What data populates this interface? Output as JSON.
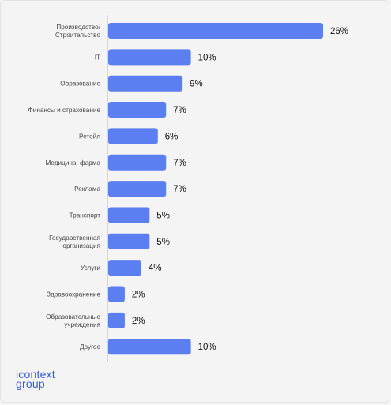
{
  "colors": {
    "bar": "#5b7ff0",
    "axis": "#b9b9b9",
    "label": "#444444",
    "value": "#111111",
    "logo": "#3a5bd9"
  },
  "logo": {
    "line1": "icontext",
    "line2": "group"
  },
  "chart_data": {
    "type": "bar",
    "orientation": "horizontal",
    "categories": [
      [
        "Производство/",
        "Строительство"
      ],
      [
        "IT"
      ],
      [
        "Образование"
      ],
      [
        "Финансы и страхование"
      ],
      [
        "Ретейл"
      ],
      [
        "Медицина, фарма"
      ],
      [
        "Реклама"
      ],
      [
        "Транспорт"
      ],
      [
        "Государственная",
        "организация"
      ],
      [
        "Услуги"
      ],
      [
        "Здравоохранение"
      ],
      [
        "Образовательные",
        "учреждения"
      ],
      [
        "Другое"
      ]
    ],
    "values": [
      26,
      10,
      9,
      7,
      6,
      7,
      7,
      5,
      5,
      4,
      2,
      2,
      10
    ],
    "value_labels": [
      "26%",
      "10%",
      "9%",
      "7%",
      "6%",
      "7%",
      "7%",
      "5%",
      "5%",
      "4%",
      "2%",
      "2%",
      "10%"
    ],
    "unit": "%",
    "xlim": [
      0,
      26
    ],
    "grid": false,
    "legend": "none"
  }
}
